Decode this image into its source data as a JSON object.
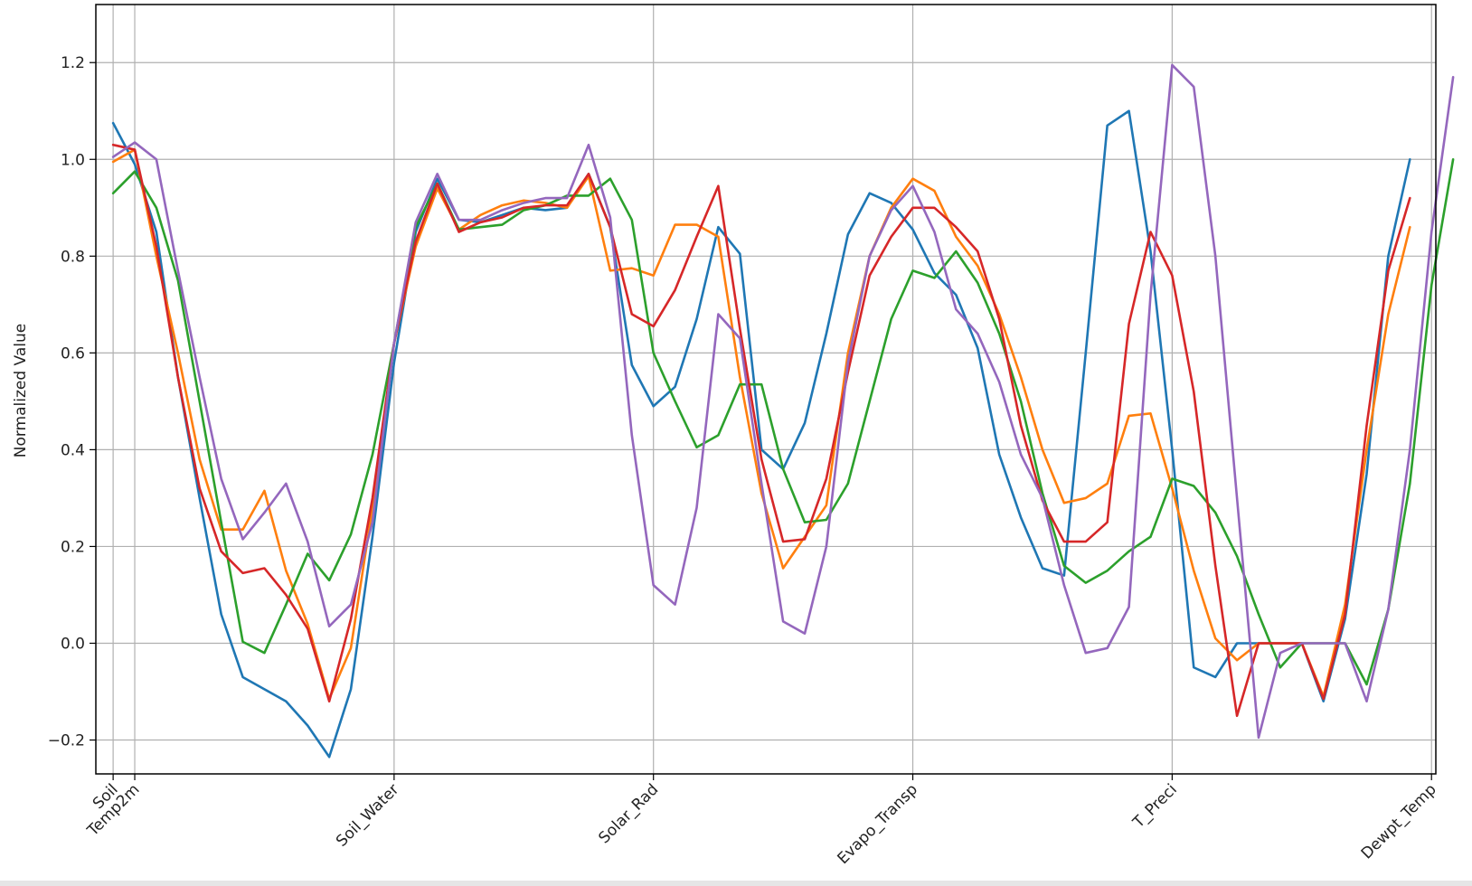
{
  "chart_data": {
    "type": "line",
    "title": "",
    "xlabel": "",
    "ylabel": "Normalized Value",
    "ylim": [
      -0.27,
      1.32
    ],
    "xlim": [
      -0.8,
      61.2
    ],
    "yticks": [
      -0.2,
      0.0,
      0.2,
      0.4,
      0.6,
      0.8,
      1.0,
      1.2
    ],
    "ytick_labels": [
      "−0.2",
      "0.0",
      "0.2",
      "0.4",
      "0.6",
      "0.8",
      "1.0",
      "1.2"
    ],
    "xticks": [
      {
        "index": 0,
        "label": "Soil"
      },
      {
        "index": 1,
        "label": "Temp2m"
      },
      {
        "index": 13,
        "label": "Soil_Water"
      },
      {
        "index": 25,
        "label": "Solar_Rad"
      },
      {
        "index": 37,
        "label": "Evapo_Transp"
      },
      {
        "index": 49,
        "label": "T_Preci"
      },
      {
        "index": 61,
        "label": "Dewpt_Temp"
      }
    ],
    "grid": true,
    "legend": "none",
    "series": [
      {
        "color": "#1f77b4",
        "values": [
          1.075,
          0.99,
          0.85,
          0.55,
          0.3,
          0.06,
          -0.07,
          -0.095,
          -0.12,
          -0.17,
          -0.235,
          -0.095,
          0.22,
          0.58,
          0.85,
          0.96,
          0.875,
          0.87,
          0.885,
          0.9,
          0.895,
          0.9,
          0.97,
          0.86,
          0.575,
          0.49,
          0.53,
          0.67,
          0.86,
          0.805,
          0.4,
          0.36,
          0.455,
          0.64,
          0.845,
          0.93,
          0.91,
          0.855,
          0.765,
          0.72,
          0.61,
          0.39,
          0.26,
          0.155,
          0.14,
          0.6,
          1.07,
          1.1,
          0.81,
          0.4,
          -0.05,
          -0.07,
          0.0,
          0.0,
          0.0,
          0.0,
          -0.12,
          0.05,
          0.35,
          0.8,
          1.0
        ]
      },
      {
        "color": "#ff7f0e",
        "values": [
          0.995,
          1.02,
          0.8,
          0.6,
          0.38,
          0.235,
          0.235,
          0.315,
          0.15,
          0.04,
          -0.115,
          -0.01,
          0.28,
          0.62,
          0.82,
          0.94,
          0.855,
          0.885,
          0.905,
          0.915,
          0.91,
          0.9,
          0.965,
          0.77,
          0.775,
          0.76,
          0.865,
          0.865,
          0.84,
          0.55,
          0.31,
          0.155,
          0.22,
          0.285,
          0.6,
          0.8,
          0.9,
          0.96,
          0.935,
          0.84,
          0.78,
          0.68,
          0.55,
          0.4,
          0.29,
          0.3,
          0.33,
          0.47,
          0.475,
          0.32,
          0.15,
          0.01,
          -0.035,
          0.0,
          0.0,
          0.0,
          -0.11,
          0.08,
          0.4,
          0.68,
          0.86
        ]
      },
      {
        "color": "#2ca02c",
        "values": [
          0.93,
          0.975,
          0.9,
          0.75,
          0.5,
          0.25,
          0.003,
          -0.02,
          0.08,
          0.185,
          0.13,
          0.225,
          0.39,
          0.62,
          0.86,
          0.95,
          0.855,
          0.86,
          0.865,
          0.895,
          0.905,
          0.925,
          0.925,
          0.96,
          0.875,
          0.6,
          0.5,
          0.405,
          0.43,
          0.535,
          0.535,
          0.36,
          0.25,
          0.255,
          0.33,
          0.5,
          0.67,
          0.77,
          0.755,
          0.81,
          0.745,
          0.64,
          0.5,
          0.31,
          0.16,
          0.125,
          0.15,
          0.19,
          0.22,
          0.34,
          0.325,
          0.27,
          0.18,
          0.06,
          -0.05,
          0.0,
          0.0,
          0.0,
          -0.085,
          0.07,
          0.33,
          0.74,
          1.0
        ]
      },
      {
        "color": "#d62728",
        "values": [
          1.03,
          1.02,
          0.82,
          0.55,
          0.32,
          0.19,
          0.145,
          0.155,
          0.1,
          0.03,
          -0.12,
          0.05,
          0.3,
          0.62,
          0.83,
          0.95,
          0.85,
          0.87,
          0.88,
          0.9,
          0.905,
          0.905,
          0.97,
          0.86,
          0.68,
          0.655,
          0.73,
          0.84,
          0.945,
          0.65,
          0.38,
          0.21,
          0.215,
          0.34,
          0.56,
          0.76,
          0.84,
          0.9,
          0.9,
          0.86,
          0.81,
          0.67,
          0.45,
          0.295,
          0.21,
          0.21,
          0.25,
          0.66,
          0.85,
          0.76,
          0.52,
          0.16,
          -0.15,
          0.0,
          0.0,
          0.0,
          -0.115,
          0.06,
          0.45,
          0.77,
          0.92
        ]
      },
      {
        "color": "#9467bd",
        "values": [
          1.005,
          1.035,
          1.0,
          0.77,
          0.55,
          0.34,
          0.215,
          0.27,
          0.33,
          0.21,
          0.035,
          0.08,
          0.25,
          0.62,
          0.87,
          0.97,
          0.875,
          0.875,
          0.895,
          0.91,
          0.92,
          0.92,
          1.03,
          0.88,
          0.43,
          0.12,
          0.08,
          0.28,
          0.68,
          0.63,
          0.33,
          0.045,
          0.02,
          0.2,
          0.58,
          0.8,
          0.895,
          0.945,
          0.85,
          0.69,
          0.64,
          0.54,
          0.39,
          0.3,
          0.12,
          -0.02,
          -0.01,
          0.075,
          0.72,
          1.195,
          1.15,
          0.8,
          0.3,
          -0.195,
          -0.02,
          0.0,
          0.0,
          0.0,
          -0.12,
          0.07,
          0.4,
          0.85,
          1.17
        ]
      }
    ]
  }
}
